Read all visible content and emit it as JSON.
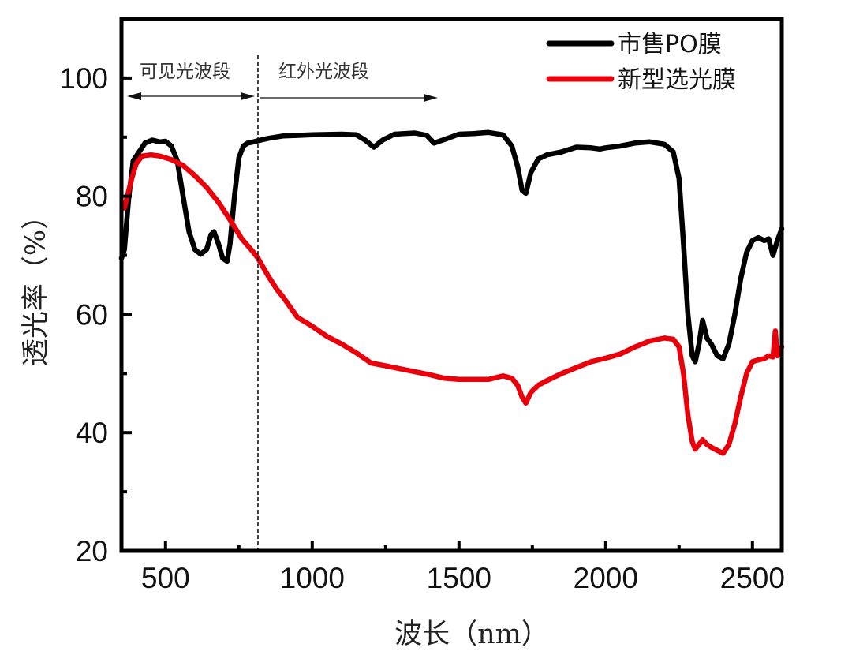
{
  "chart_data": {
    "type": "line",
    "xlabel": "波长（nm）",
    "ylabel": "透光率（%）",
    "xlim": [
      350,
      2600
    ],
    "ylim": [
      20,
      110
    ],
    "xticks": [
      500,
      1000,
      1500,
      2000,
      2500
    ],
    "xtick_labels": [
      "500",
      "1000",
      "1500",
      "2000",
      "2500"
    ],
    "xminor": [
      750,
      1250,
      1750,
      2250
    ],
    "yticks": [
      20,
      40,
      60,
      80,
      100
    ],
    "ytick_labels": [
      "20",
      "40",
      "60",
      "80",
      "100"
    ],
    "yminor": [
      30,
      50,
      70,
      90
    ],
    "grid": false,
    "legend_position": "top-right",
    "annotations": {
      "visible_band": {
        "label": "可见光波段",
        "from": 350,
        "to": 815
      },
      "ir_band": {
        "label": "红外光波段",
        "from": 815,
        "to": 1420
      },
      "divider_x": 815
    },
    "series": [
      {
        "name": "市售PO膜",
        "color": "#000000",
        "x": [
          350,
          360,
          375,
          390,
          410,
          430,
          455,
          480,
          500,
          520,
          540,
          560,
          580,
          600,
          620,
          640,
          655,
          665,
          680,
          695,
          710,
          720,
          735,
          750,
          765,
          780,
          800,
          815,
          850,
          900,
          1000,
          1100,
          1150,
          1180,
          1210,
          1240,
          1280,
          1350,
          1390,
          1415,
          1450,
          1500,
          1550,
          1600,
          1650,
          1680,
          1700,
          1715,
          1728,
          1745,
          1770,
          1800,
          1850,
          1900,
          1950,
          1980,
          2000,
          2050,
          2100,
          2150,
          2200,
          2230,
          2250,
          2265,
          2280,
          2295,
          2305,
          2318,
          2330,
          2345,
          2360,
          2380,
          2400,
          2420,
          2440,
          2460,
          2480,
          2500,
          2520,
          2540,
          2555,
          2570,
          2585,
          2600
        ],
        "values": [
          69.5,
          71,
          80,
          86,
          87.5,
          89,
          89.5,
          89.2,
          89.3,
          88.5,
          86,
          80,
          74,
          71,
          70.2,
          71,
          73.5,
          74,
          72,
          69.5,
          69,
          72,
          80,
          86.5,
          88.5,
          89,
          89.2,
          89.4,
          89.8,
          90.2,
          90.4,
          90.5,
          90.4,
          89.5,
          88.3,
          89.5,
          90.5,
          90.7,
          90.3,
          89,
          89.6,
          90.5,
          90.6,
          90.8,
          90.4,
          88.5,
          85,
          81,
          80.5,
          84,
          86.3,
          87,
          87.5,
          88.3,
          88.2,
          88,
          88.2,
          88.5,
          89,
          89.2,
          88.8,
          87.5,
          83,
          72,
          60,
          53,
          52,
          55,
          59,
          56,
          55,
          53,
          52.5,
          55,
          60,
          66,
          70.5,
          72.5,
          73,
          72.5,
          72.8,
          70,
          72.5,
          74.5
        ]
      },
      {
        "name": "新型选光膜",
        "color": "#e8000b",
        "x": [
          360,
          370,
          385,
          400,
          420,
          450,
          480,
          520,
          560,
          600,
          640,
          680,
          720,
          760,
          800,
          815,
          850,
          880,
          900,
          950,
          1000,
          1050,
          1100,
          1150,
          1200,
          1250,
          1300,
          1350,
          1400,
          1450,
          1500,
          1550,
          1600,
          1650,
          1680,
          1700,
          1715,
          1728,
          1745,
          1770,
          1800,
          1850,
          1900,
          1950,
          2000,
          2050,
          2100,
          2150,
          2200,
          2230,
          2250,
          2265,
          2280,
          2295,
          2305,
          2318,
          2330,
          2345,
          2360,
          2380,
          2400,
          2420,
          2440,
          2460,
          2480,
          2500,
          2520,
          2540,
          2555,
          2570,
          2578,
          2585,
          2600
        ],
        "values": [
          78,
          80,
          83,
          85.5,
          86.8,
          87,
          86.8,
          86.2,
          85.2,
          83.5,
          81.5,
          79,
          76,
          72.8,
          70.5,
          69.5,
          66.5,
          64.2,
          63,
          59.5,
          58,
          56.3,
          55,
          53.5,
          51.8,
          51.3,
          50.8,
          50.3,
          49.8,
          49.2,
          49,
          49,
          49,
          49.6,
          49.2,
          48,
          46,
          45,
          46.8,
          48,
          48.8,
          50,
          51,
          52,
          52.6,
          53.3,
          54.5,
          55.5,
          56,
          55.8,
          54.5,
          50,
          43,
          38.5,
          37.2,
          38,
          38.8,
          38,
          37.5,
          37,
          36.5,
          38,
          41.5,
          46,
          50,
          52,
          52.3,
          52.5,
          53,
          52.8,
          57.2,
          53,
          54.5
        ]
      }
    ]
  }
}
